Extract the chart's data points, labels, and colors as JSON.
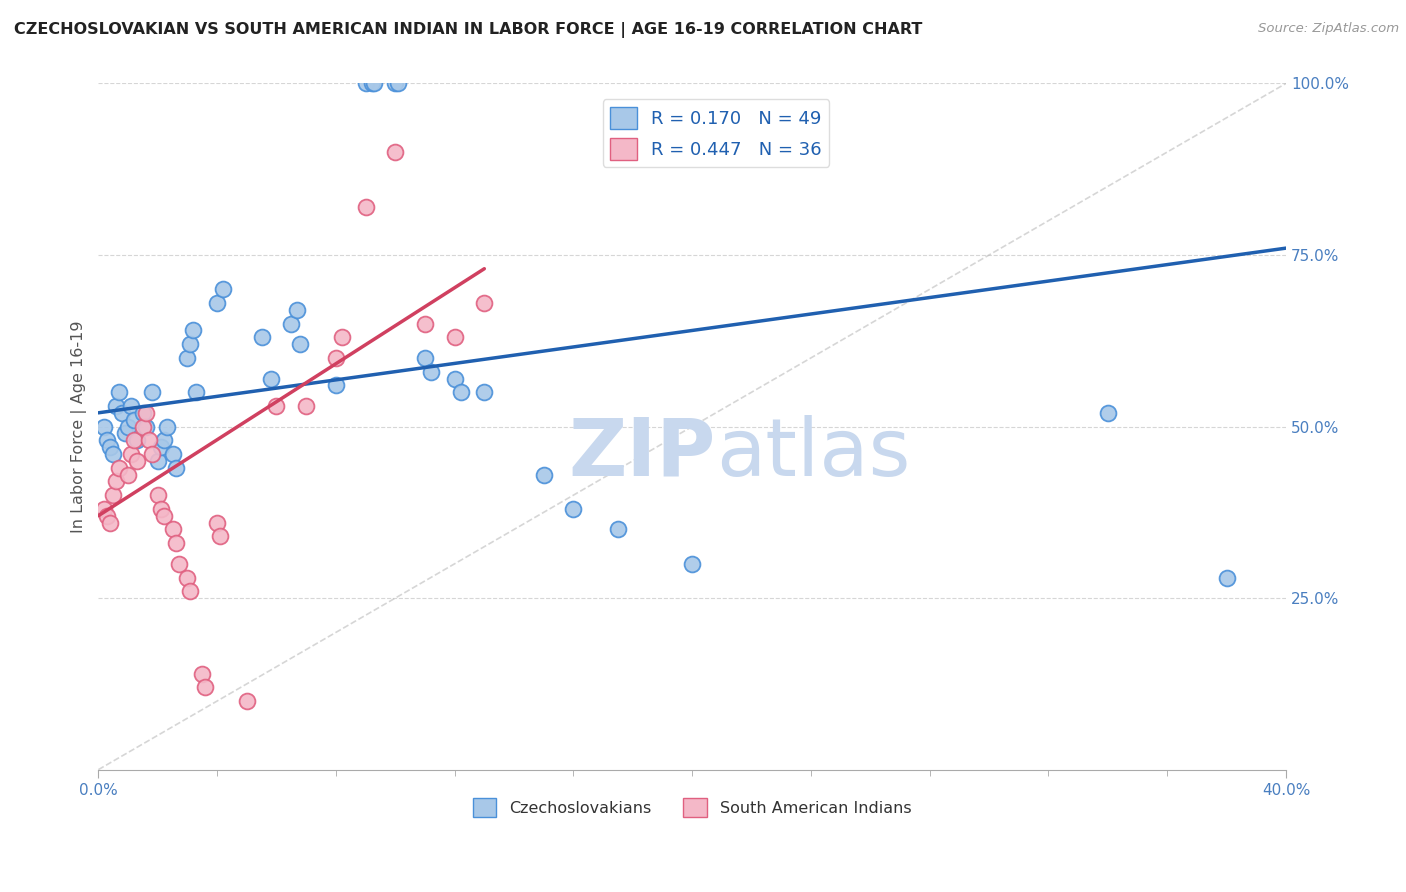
{
  "title": "CZECHOSLOVAKIAN VS SOUTH AMERICAN INDIAN IN LABOR FORCE | AGE 16-19 CORRELATION CHART",
  "source": "Source: ZipAtlas.com",
  "ylabel": "In Labor Force | Age 16-19",
  "xlim": [
    0.0,
    0.4
  ],
  "ylim": [
    0.0,
    1.0
  ],
  "xtick_positions": [
    0.0,
    0.4
  ],
  "xticklabels": [
    "0.0%",
    "40.0%"
  ],
  "ytick_positions": [
    0.25,
    0.5,
    0.75,
    1.0
  ],
  "yticklabels": [
    "25.0%",
    "50.0%",
    "75.0%",
    "100.0%"
  ],
  "blue_fill": "#a8c8e8",
  "blue_edge": "#4a90d9",
  "pink_fill": "#f4b8c8",
  "pink_edge": "#e06080",
  "blue_line_color": "#2060b0",
  "pink_line_color": "#d04060",
  "legend_blue_r": "R = 0.170",
  "legend_blue_n": "N = 49",
  "legend_pink_r": "R = 0.447",
  "legend_pink_n": "N = 36",
  "blue_x": [
    0.002,
    0.003,
    0.004,
    0.005,
    0.006,
    0.007,
    0.008,
    0.009,
    0.01,
    0.011,
    0.012,
    0.013,
    0.015,
    0.016,
    0.018,
    0.02,
    0.021,
    0.022,
    0.023,
    0.025,
    0.026,
    0.03,
    0.031,
    0.032,
    0.033,
    0.04,
    0.042,
    0.055,
    0.058,
    0.065,
    0.067,
    0.068,
    0.08,
    0.09,
    0.092,
    0.093,
    0.1,
    0.101,
    0.11,
    0.112,
    0.12,
    0.122,
    0.13,
    0.15,
    0.16,
    0.175,
    0.2,
    0.34,
    0.38
  ],
  "blue_y": [
    0.5,
    0.48,
    0.47,
    0.46,
    0.53,
    0.55,
    0.52,
    0.49,
    0.5,
    0.53,
    0.51,
    0.48,
    0.52,
    0.5,
    0.55,
    0.45,
    0.47,
    0.48,
    0.5,
    0.46,
    0.44,
    0.6,
    0.62,
    0.64,
    0.55,
    0.68,
    0.7,
    0.63,
    0.57,
    0.65,
    0.67,
    0.62,
    0.56,
    1.0,
    1.0,
    1.0,
    1.0,
    1.0,
    0.6,
    0.58,
    0.57,
    0.55,
    0.55,
    0.43,
    0.38,
    0.35,
    0.3,
    0.52,
    0.28
  ],
  "pink_x": [
    0.002,
    0.003,
    0.004,
    0.005,
    0.006,
    0.007,
    0.01,
    0.011,
    0.012,
    0.013,
    0.015,
    0.016,
    0.017,
    0.018,
    0.02,
    0.021,
    0.022,
    0.025,
    0.026,
    0.027,
    0.03,
    0.031,
    0.035,
    0.036,
    0.04,
    0.041,
    0.05,
    0.06,
    0.07,
    0.08,
    0.082,
    0.09,
    0.1,
    0.11,
    0.12,
    0.13
  ],
  "pink_y": [
    0.38,
    0.37,
    0.36,
    0.4,
    0.42,
    0.44,
    0.43,
    0.46,
    0.48,
    0.45,
    0.5,
    0.52,
    0.48,
    0.46,
    0.4,
    0.38,
    0.37,
    0.35,
    0.33,
    0.3,
    0.28,
    0.26,
    0.14,
    0.12,
    0.36,
    0.34,
    0.1,
    0.53,
    0.53,
    0.6,
    0.63,
    0.82,
    0.9,
    0.65,
    0.63,
    0.68
  ],
  "blue_line_x0": 0.0,
  "blue_line_y0": 0.52,
  "blue_line_x1": 0.4,
  "blue_line_y1": 0.76,
  "pink_line_x0": 0.0,
  "pink_line_y0": 0.37,
  "pink_line_x1": 0.13,
  "pink_line_y1": 0.73,
  "diag_color": "#bbbbbb",
  "background_color": "#ffffff",
  "grid_color": "#cccccc",
  "watermark_color": "#c8d8ee"
}
